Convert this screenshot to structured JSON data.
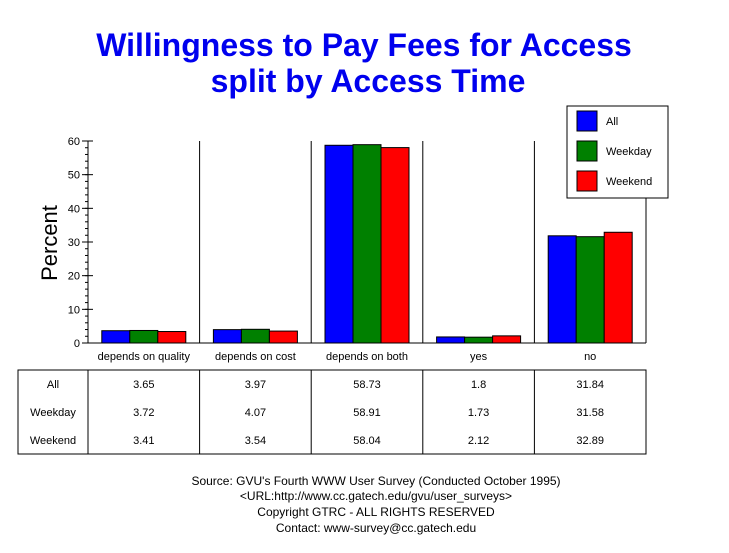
{
  "chart_data": {
    "type": "bar",
    "title": [
      "Willingness to Pay Fees for Access",
      "split by Access Time"
    ],
    "ylabel": "Percent",
    "ylim": [
      0,
      60
    ],
    "yticks": [
      0,
      10,
      20,
      30,
      40,
      50,
      60
    ],
    "categories": [
      "depends on quality",
      "depends on cost",
      "depends on both",
      "yes",
      "no"
    ],
    "series": [
      {
        "name": "All",
        "color": "#0000ff",
        "values": [
          3.65,
          3.97,
          58.73,
          1.8,
          31.84
        ]
      },
      {
        "name": "Weekday",
        "color": "#008000",
        "values": [
          3.72,
          4.07,
          58.91,
          1.73,
          31.58
        ]
      },
      {
        "name": "Weekend",
        "color": "#ff0000",
        "values": [
          3.41,
          3.54,
          58.04,
          2.12,
          32.89
        ]
      }
    ],
    "legend_position": "top-right",
    "grid": "vertical"
  },
  "footer": [
    "Source: GVU's Fourth WWW User Survey  (Conducted October 1995)",
    "<URL:http://www.cc.gatech.edu/gvu/user_surveys>",
    "Copyright GTRC -  ALL RIGHTS RESERVED",
    "Contact: www-survey@cc.gatech.edu"
  ]
}
